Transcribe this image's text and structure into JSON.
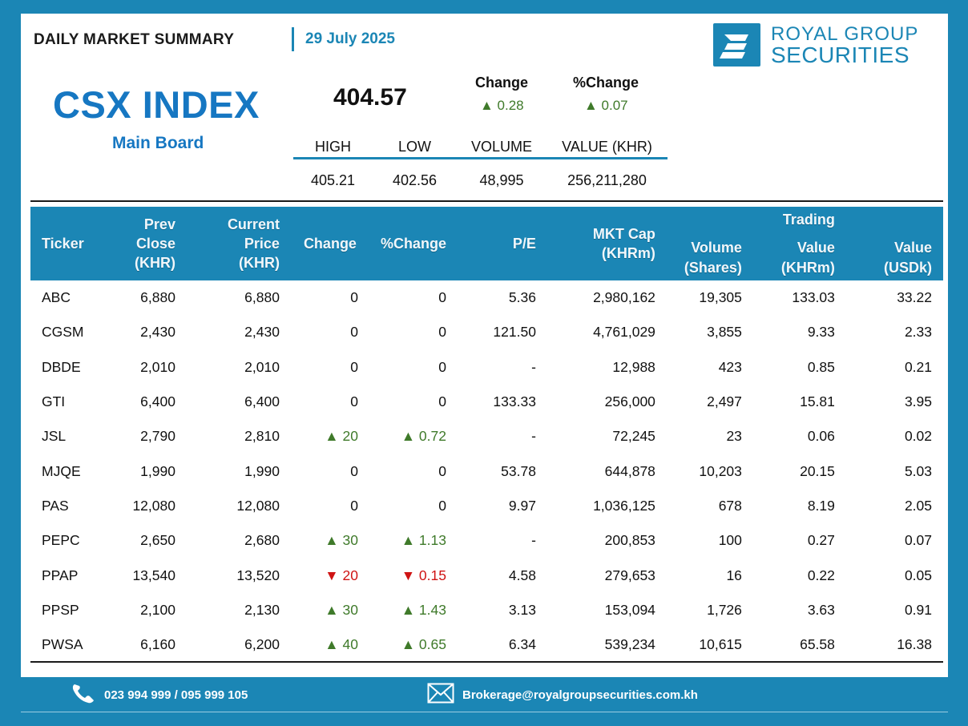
{
  "header": {
    "summary_title": "DAILY MARKET SUMMARY",
    "date": "29 July 2025",
    "logo": {
      "line1": "ROYAL GROUP",
      "line2": "SECURITIES",
      "icon": "rgs-logo-icon"
    }
  },
  "index": {
    "name": "CSX INDEX",
    "board": "Main Board",
    "value": "404.57",
    "change_label": "Change",
    "change_value": "▲ 0.28",
    "pct_change_label": "%Change",
    "pct_change_value": "▲ 0.07"
  },
  "stats": {
    "headers": [
      "HIGH",
      "LOW",
      "VOLUME",
      "VALUE (KHR)"
    ],
    "values": [
      "405.21",
      "402.56",
      "48,995",
      "256,211,280"
    ]
  },
  "table": {
    "headers": {
      "ticker": "Ticker",
      "prev_close_1": "Prev Close",
      "prev_close_2": "(KHR)",
      "current_price_1": "Current Price",
      "current_price_2": "(KHR)",
      "change": "Change",
      "pct_change": "%Change",
      "pe": "P/E",
      "mkt_cap_1": "MKT Cap",
      "mkt_cap_2": "(KHRm)",
      "volume_1": "Volume",
      "volume_2": "(Shares)",
      "trading_group": "Trading",
      "value_khr_1": "Value",
      "value_khr_2": "(KHRm)",
      "value_usd_1": "Value",
      "value_usd_2": "(USDk)"
    },
    "rows": [
      {
        "ticker": "ABC",
        "prev": "6,880",
        "cur": "6,880",
        "chg": "0",
        "pct": "0",
        "dir": "flat",
        "pe": "5.36",
        "cap": "2,980,162",
        "vol": "19,305",
        "vkhr": "133.03",
        "vusd": "33.22"
      },
      {
        "ticker": "CGSM",
        "prev": "2,430",
        "cur": "2,430",
        "chg": "0",
        "pct": "0",
        "dir": "flat",
        "pe": "121.50",
        "cap": "4,761,029",
        "vol": "3,855",
        "vkhr": "9.33",
        "vusd": "2.33"
      },
      {
        "ticker": "DBDE",
        "prev": "2,010",
        "cur": "2,010",
        "chg": "0",
        "pct": "0",
        "dir": "flat",
        "pe": "-",
        "cap": "12,988",
        "vol": "423",
        "vkhr": "0.85",
        "vusd": "0.21"
      },
      {
        "ticker": "GTI",
        "prev": "6,400",
        "cur": "6,400",
        "chg": "0",
        "pct": "0",
        "dir": "flat",
        "pe": "133.33",
        "cap": "256,000",
        "vol": "2,497",
        "vkhr": "15.81",
        "vusd": "3.95"
      },
      {
        "ticker": "JSL",
        "prev": "2,790",
        "cur": "2,810",
        "chg": "▲ 20",
        "pct": "▲ 0.72",
        "dir": "up",
        "pe": "-",
        "cap": "72,245",
        "vol": "23",
        "vkhr": "0.06",
        "vusd": "0.02"
      },
      {
        "ticker": "MJQE",
        "prev": "1,990",
        "cur": "1,990",
        "chg": "0",
        "pct": "0",
        "dir": "flat",
        "pe": "53.78",
        "cap": "644,878",
        "vol": "10,203",
        "vkhr": "20.15",
        "vusd": "5.03"
      },
      {
        "ticker": "PAS",
        "prev": "12,080",
        "cur": "12,080",
        "chg": "0",
        "pct": "0",
        "dir": "flat",
        "pe": "9.97",
        "cap": "1,036,125",
        "vol": "678",
        "vkhr": "8.19",
        "vusd": "2.05"
      },
      {
        "ticker": "PEPC",
        "prev": "2,650",
        "cur": "2,680",
        "chg": "▲ 30",
        "pct": "▲ 1.13",
        "dir": "up",
        "pe": "-",
        "cap": "200,853",
        "vol": "100",
        "vkhr": "0.27",
        "vusd": "0.07"
      },
      {
        "ticker": "PPAP",
        "prev": "13,540",
        "cur": "13,520",
        "chg": "▼ 20",
        "pct": "▼ 0.15",
        "dir": "down",
        "pe": "4.58",
        "cap": "279,653",
        "vol": "16",
        "vkhr": "0.22",
        "vusd": "0.05"
      },
      {
        "ticker": "PPSP",
        "prev": "2,100",
        "cur": "2,130",
        "chg": "▲ 30",
        "pct": "▲ 1.43",
        "dir": "up",
        "pe": "3.13",
        "cap": "153,094",
        "vol": "1,726",
        "vkhr": "3.63",
        "vusd": "0.91"
      },
      {
        "ticker": "PWSA",
        "prev": "6,160",
        "cur": "6,200",
        "chg": "▲ 40",
        "pct": "▲ 0.65",
        "dir": "up",
        "pe": "6.34",
        "cap": "539,234",
        "vol": "10,615",
        "vkhr": "65.58",
        "vusd": "16.38"
      }
    ]
  },
  "footer": {
    "phone": "023 994 999 / 095 999 105",
    "phone_icon": "phone-icon",
    "email": "Brokerage@royalgroupsecurities.com.kh",
    "email_icon": "mail-icon"
  },
  "colors": {
    "brand_blue": "#1b86b5",
    "index_blue": "#1677c2",
    "up_green": "#3f7a2a",
    "down_red": "#cf1414"
  }
}
